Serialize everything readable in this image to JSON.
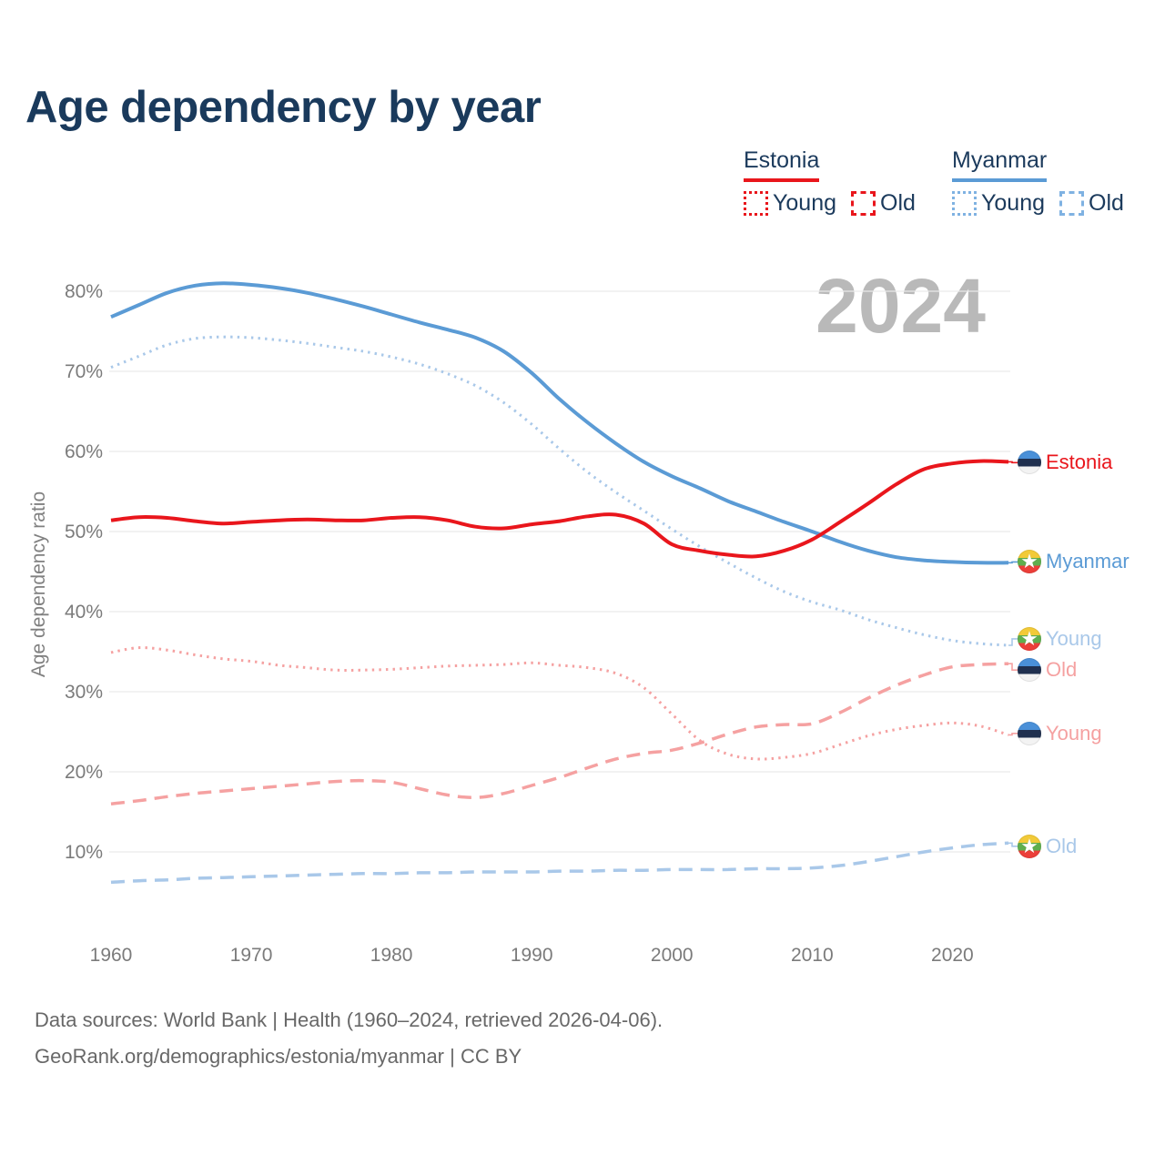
{
  "title": "Age dependency by year",
  "watermark": "2024",
  "legend": {
    "estonia": {
      "name": "Estonia",
      "young": "Young",
      "old": "Old"
    },
    "myanmar": {
      "name": "Myanmar",
      "young": "Young",
      "old": "Old"
    }
  },
  "footer": {
    "line1": "Data sources: World Bank | Health (1960–2024, retrieved 2026-04-06).",
    "line2": "GeoRank.org/demographics/estonia/myanmar | CC BY"
  },
  "colors": {
    "estonia": "#e9161c",
    "estonia_light": "#f5a1a1",
    "myanmar": "#5b9bd5",
    "myanmar_light": "#a9c8e9",
    "grid": "#e9e9e9",
    "tick": "#7b7b7b",
    "title": "#1a3a5c",
    "watermark": "#b9b9b9",
    "footer": "#686868"
  },
  "chart_data": {
    "type": "line",
    "title": "Age dependency by year",
    "xlabel": "",
    "ylabel": "Age dependency ratio",
    "xlim": [
      1960,
      2024
    ],
    "ylim": [
      5,
      85
    ],
    "grid": "horizontal",
    "legend_position": "top-right",
    "x_ticks": [
      1960,
      1970,
      1980,
      1990,
      2000,
      2010,
      2020
    ],
    "y_ticks": [
      10,
      20,
      30,
      40,
      50,
      60,
      70,
      80
    ],
    "y_tick_suffix": "%",
    "x": [
      1960,
      1962,
      1964,
      1966,
      1968,
      1970,
      1972,
      1974,
      1976,
      1978,
      1980,
      1982,
      1984,
      1986,
      1988,
      1990,
      1992,
      1994,
      1996,
      1998,
      2000,
      2002,
      2004,
      2006,
      2008,
      2010,
      2012,
      2014,
      2016,
      2018,
      2020,
      2022,
      2024
    ],
    "series": [
      {
        "id": "myanmar-young",
        "label": "Myanmar Young",
        "style": "dotted",
        "color": "myanmar_light",
        "values": [
          70.5,
          71.9,
          73.3,
          74.1,
          74.3,
          74.2,
          73.9,
          73.5,
          73.0,
          72.5,
          71.8,
          70.9,
          69.7,
          68.2,
          66.1,
          63.4,
          60.3,
          57.4,
          54.9,
          52.6,
          50.3,
          48.1,
          46.1,
          44.2,
          42.5,
          41.2,
          40.2,
          39.0,
          38.0,
          37.1,
          36.4,
          36.0,
          35.8
        ]
      },
      {
        "id": "estonia-young",
        "label": "Estonia Young",
        "style": "dotted",
        "color": "estonia_light",
        "values": [
          34.9,
          35.5,
          35.2,
          34.6,
          34.1,
          33.8,
          33.3,
          33.0,
          32.7,
          32.7,
          32.8,
          33.0,
          33.2,
          33.3,
          33.4,
          33.6,
          33.3,
          33.0,
          32.3,
          30.5,
          27.2,
          23.9,
          22.2,
          21.6,
          21.8,
          22.3,
          23.4,
          24.5,
          25.3,
          25.8,
          26.1,
          25.7,
          24.6
        ]
      },
      {
        "id": "estonia-old",
        "label": "Estonia Old",
        "style": "dashed",
        "color": "estonia_light",
        "values": [
          16.0,
          16.4,
          16.9,
          17.3,
          17.6,
          17.9,
          18.2,
          18.5,
          18.8,
          18.9,
          18.7,
          17.9,
          17.1,
          16.8,
          17.3,
          18.3,
          19.3,
          20.5,
          21.6,
          22.3,
          22.7,
          23.6,
          24.7,
          25.6,
          25.9,
          26.0,
          27.4,
          29.2,
          30.8,
          32.1,
          33.1,
          33.4,
          33.5
        ]
      },
      {
        "id": "myanmar-old",
        "label": "Myanmar Old",
        "style": "dashed",
        "color": "myanmar_light",
        "values": [
          6.2,
          6.4,
          6.5,
          6.7,
          6.8,
          6.9,
          7.0,
          7.1,
          7.2,
          7.3,
          7.3,
          7.4,
          7.4,
          7.5,
          7.5,
          7.5,
          7.6,
          7.6,
          7.7,
          7.7,
          7.8,
          7.8,
          7.8,
          7.9,
          7.9,
          8.0,
          8.3,
          8.8,
          9.4,
          10.0,
          10.5,
          10.9,
          11.1
        ]
      },
      {
        "id": "myanmar-total",
        "label": "Myanmar",
        "style": "solid",
        "color": "myanmar",
        "values": [
          76.8,
          78.3,
          79.8,
          80.7,
          81.0,
          80.8,
          80.4,
          79.8,
          79.0,
          78.1,
          77.1,
          76.1,
          75.2,
          74.2,
          72.5,
          69.8,
          66.5,
          63.6,
          61.0,
          58.7,
          56.9,
          55.4,
          53.8,
          52.5,
          51.2,
          50.0,
          48.7,
          47.6,
          46.8,
          46.4,
          46.2,
          46.1,
          46.1
        ]
      },
      {
        "id": "estonia-total",
        "label": "Estonia",
        "style": "solid",
        "color": "estonia",
        "values": [
          51.4,
          51.8,
          51.7,
          51.3,
          51.0,
          51.2,
          51.4,
          51.5,
          51.4,
          51.4,
          51.7,
          51.8,
          51.4,
          50.6,
          50.4,
          50.9,
          51.3,
          51.9,
          52.1,
          51.0,
          48.4,
          47.6,
          47.1,
          46.9,
          47.6,
          49.0,
          51.2,
          53.5,
          55.9,
          57.8,
          58.5,
          58.8,
          58.7
        ]
      }
    ],
    "end_labels": [
      {
        "text": "Estonia",
        "series": "estonia-total",
        "flag": "estonia",
        "color": "estonia",
        "value": 58.6
      },
      {
        "text": "Myanmar",
        "series": "myanmar-total",
        "flag": "myanmar",
        "color": "myanmar",
        "value": 46.2
      },
      {
        "text": "Young",
        "series": "myanmar-young",
        "flag": "myanmar",
        "color": "myanmar_light",
        "value": 36.6
      },
      {
        "text": "Old",
        "series": "estonia-old",
        "flag": "estonia",
        "color": "estonia_light",
        "value": 32.7
      },
      {
        "text": "Young",
        "series": "estonia-young",
        "flag": "estonia",
        "color": "estonia_light",
        "value": 24.8
      },
      {
        "text": "Old",
        "series": "myanmar-old",
        "flag": "myanmar",
        "color": "myanmar_light",
        "value": 10.7
      }
    ]
  }
}
